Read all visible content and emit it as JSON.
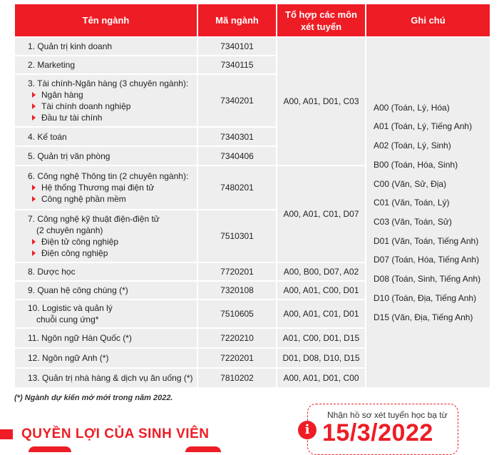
{
  "headers": {
    "major_name": "Tên ngành",
    "major_code": "Mã ngành",
    "combo_line1": "Tổ hợp các môn",
    "combo_line2": "xét tuyển",
    "notes": "Ghi chú"
  },
  "majors": [
    {
      "name": "1. Quản trị kinh doanh",
      "code": "7340101"
    },
    {
      "name": "2. Marketing",
      "code": "7340115"
    },
    {
      "name": "3. Tài chính-Ngân hàng (3 chuyên ngành):",
      "code": "7340201",
      "subs": [
        "Ngân hàng",
        "Tài chính doanh nghiệp",
        "Đầu tư tài chính"
      ]
    },
    {
      "name": "4. Kế toán",
      "code": "7340301"
    },
    {
      "name": "5. Quản trị văn phòng",
      "code": "7340406"
    },
    {
      "name": "6. Công nghệ Thông tin (2 chuyên ngành):",
      "code": "7480201",
      "subs": [
        "Hệ thống Thương mại điện tử",
        "Công nghệ phần mềm"
      ]
    },
    {
      "name": "7. Công nghệ kỹ thuật điện-điện tử",
      "name2": "(2 chuyên ngành)",
      "code": "7510301",
      "subs": [
        "Điện tử công nghiệp",
        "Điện công nghiệp"
      ]
    },
    {
      "name": "8. Dược học",
      "code": "7720201",
      "combo": "A00, B00, D07, A02"
    },
    {
      "name": "9. Quan hệ công chúng (*)",
      "code": "7320108",
      "combo": "A00, A01, C00, D01"
    },
    {
      "name": "10. Logistic và quản lý",
      "name2": "chuỗi cung ứng*",
      "code": "7510605",
      "combo": "A00, A01, C01, D01"
    },
    {
      "name": "11. Ngôn ngữ Hàn Quốc (*)",
      "code": "7220210",
      "combo": "A01, C00, D01, D15"
    },
    {
      "name": "12. Ngôn ngữ Anh (*)",
      "code": "7220201",
      "combo": "D01, D08, D10, D15"
    },
    {
      "name": "13. Quản trị nhà hàng & dịch vụ ăn uống (*)",
      "code": "7810202",
      "combo": "A00, A01, D01, C00"
    }
  ],
  "combo_group_1": "A00, A01, D01, C03",
  "combo_group_2": "A00, A01, C01, D07",
  "notes": [
    "A00 (Toán, Lý, Hóa)",
    "A01 (Toán, Lý, Tiếng Anh)",
    "A02 (Toán, Lý, Sinh)",
    "B00 (Toán, Hóa, Sinh)",
    "C00 (Văn, Sử, Địa)",
    "C01 (Văn, Toán, Lý)",
    "C03 (Văn, Toán, Sử)",
    "D01  (Văn, Toán, Tiếng Anh)",
    "D07 (Toán, Hóa, Tiếng Anh)",
    "D08 (Toán, Sinh, Tiếng Anh)",
    "D10 (Toán, Địa, Tiếng Anh)",
    "D15 (Văn, Địa, Tiếng Anh)"
  ],
  "footnote": "(*) Ngành dự kiến mở mới trong năm 2022.",
  "benefits_title": "QUYỀN LỢI CỦA SINH VIÊN",
  "deadline": {
    "label": "Nhận hồ sơ xét tuyển học bạ từ",
    "date": "15/3/2022",
    "icon": "info-icon"
  },
  "colors": {
    "accent": "#ee1c25",
    "row_bg": "#eeeeee"
  }
}
